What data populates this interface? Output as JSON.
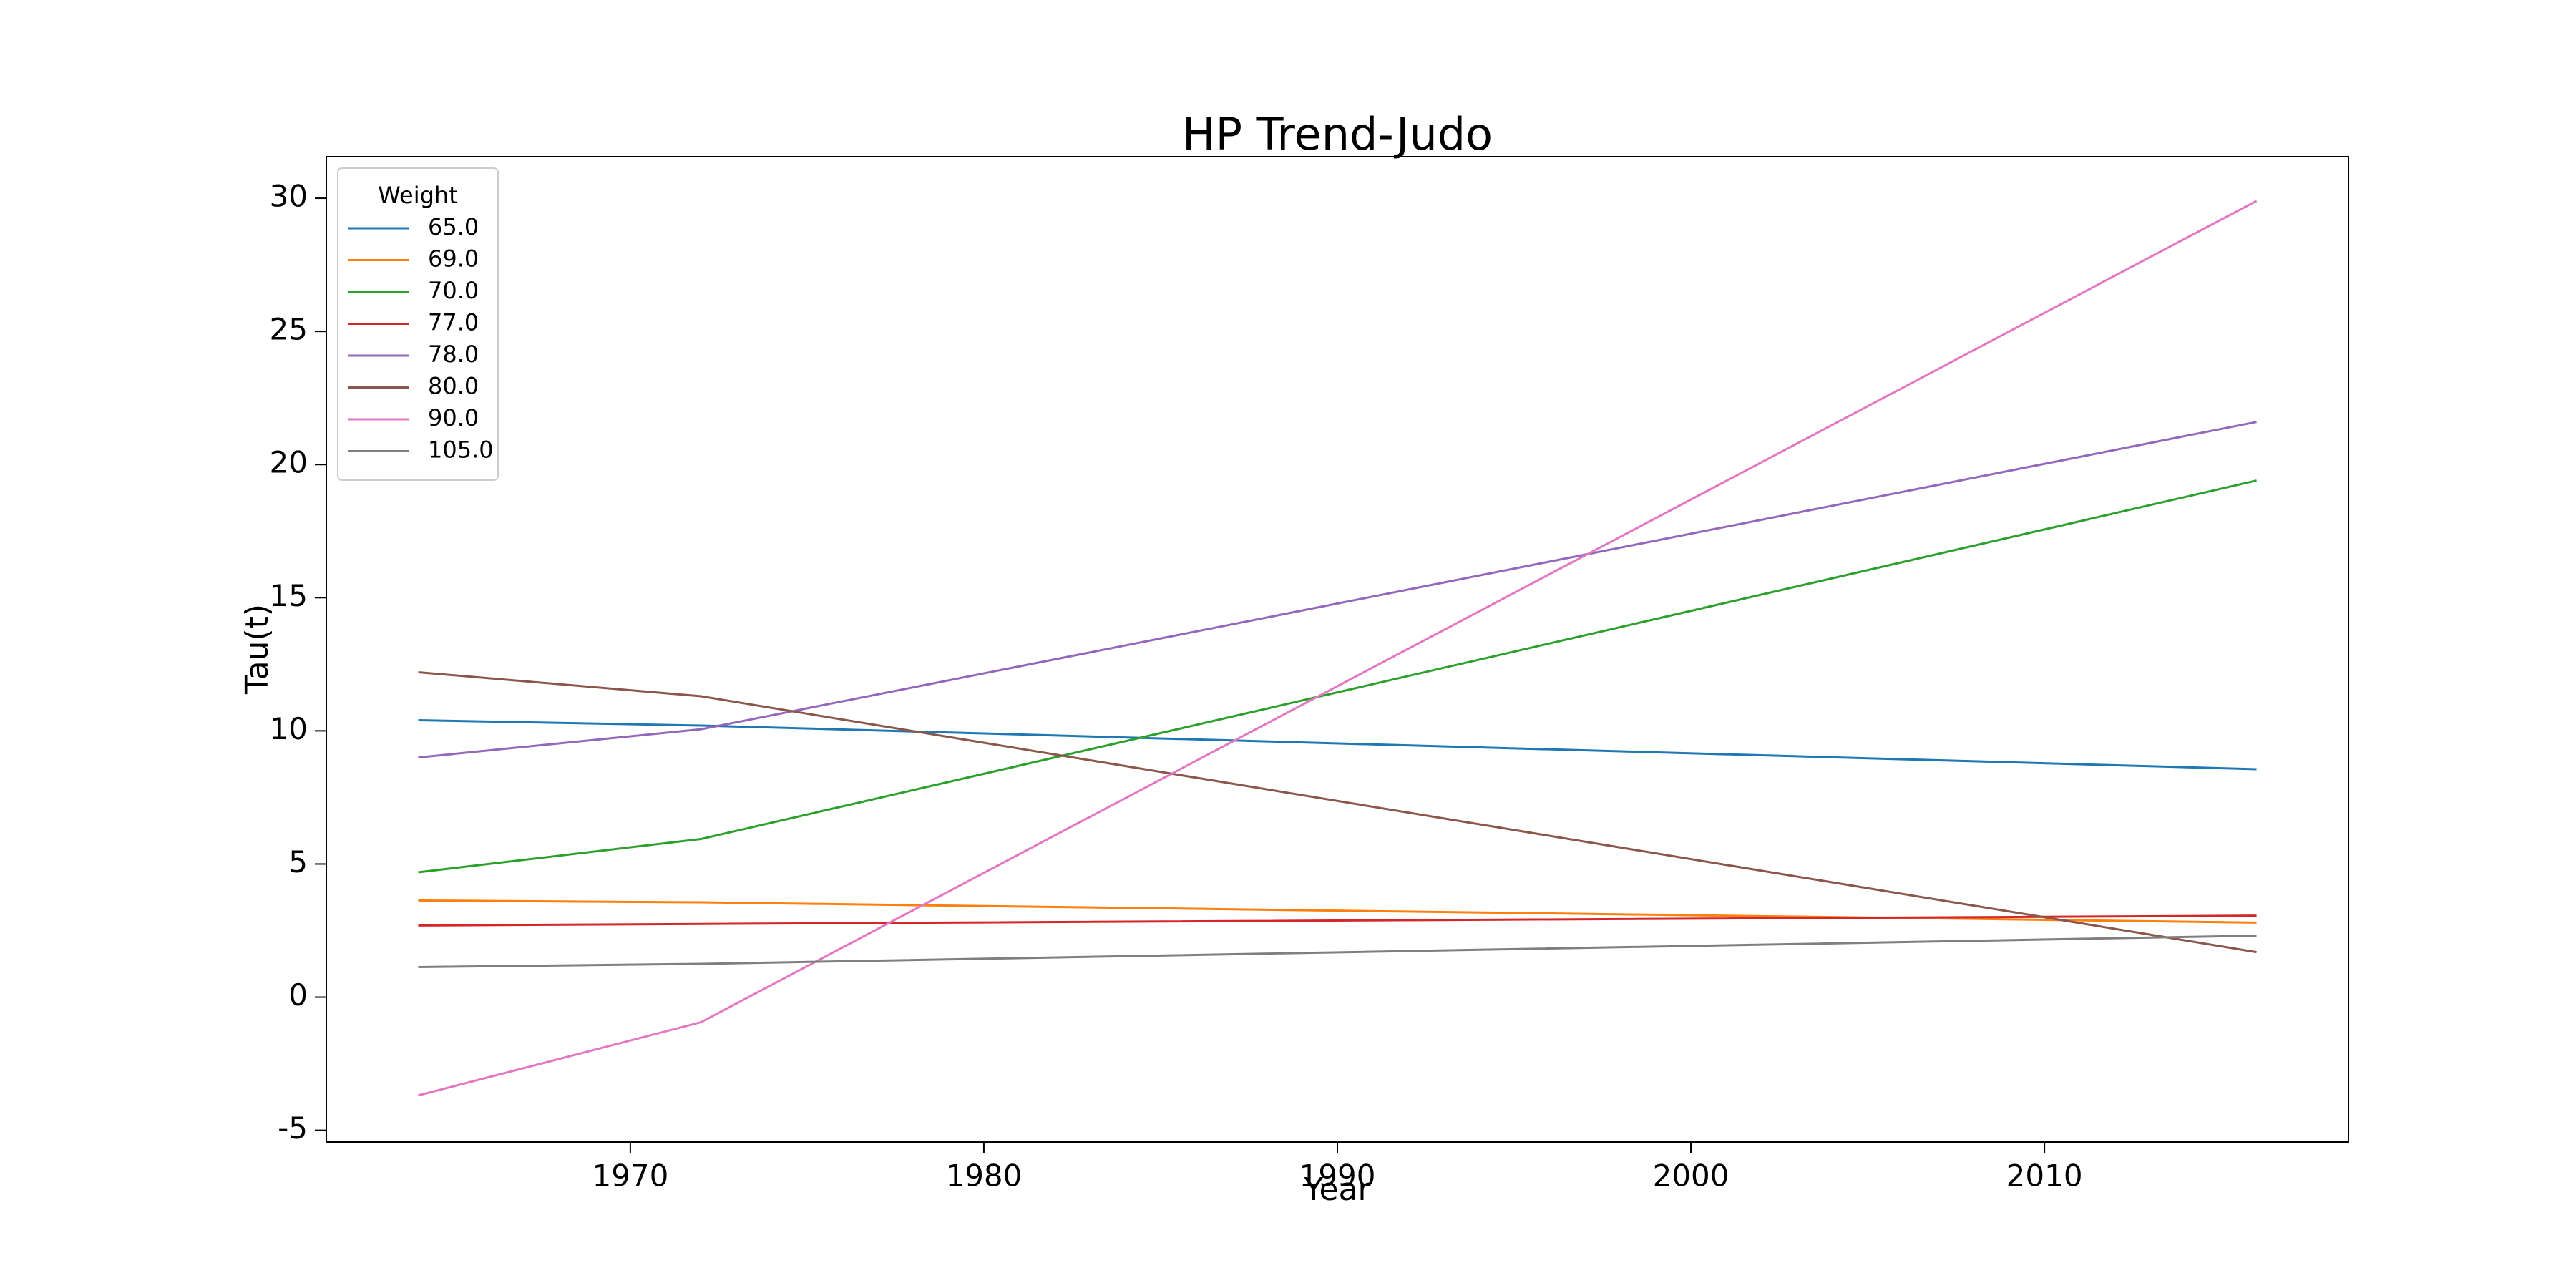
{
  "chart_data": {
    "type": "line",
    "title": "HP Trend-Judo",
    "x_label": "Year",
    "y_label": "Tau(t)",
    "x": [
      1964,
      1972,
      2016
    ],
    "series": [
      {
        "name": "65.0",
        "color": "#1f77b4",
        "values": [
          10.4,
          10.2,
          8.56
        ]
      },
      {
        "name": "69.0",
        "color": "#ff7f0e",
        "values": [
          3.63,
          3.56,
          2.8
        ]
      },
      {
        "name": "70.0",
        "color": "#2ca02c",
        "values": [
          4.69,
          5.94,
          19.4
        ]
      },
      {
        "name": "77.0",
        "color": "#d62728",
        "values": [
          2.69,
          2.75,
          3.06
        ]
      },
      {
        "name": "78.0",
        "color": "#9467bd",
        "values": [
          9.0,
          10.06,
          21.6
        ]
      },
      {
        "name": "80.0",
        "color": "#8c564b",
        "values": [
          12.2,
          11.3,
          1.69
        ]
      },
      {
        "name": "90.0",
        "color": "#e377c2",
        "values": [
          -3.69,
          -0.94,
          29.9
        ]
      },
      {
        "name": "105.0",
        "color": "#7f7f7f",
        "values": [
          1.13,
          1.25,
          2.31
        ]
      }
    ],
    "legend_title": "Weight",
    "legend": "upper left",
    "xlim": [
      1961.4,
      2018.6
    ],
    "xticks": [
      1970,
      1980,
      1990,
      2000,
      2010
    ],
    "ylim": [
      -5.44,
      31.56
    ],
    "yticks": [
      -5,
      0,
      5,
      10,
      15,
      20,
      25,
      30
    ],
    "grid": false
  }
}
